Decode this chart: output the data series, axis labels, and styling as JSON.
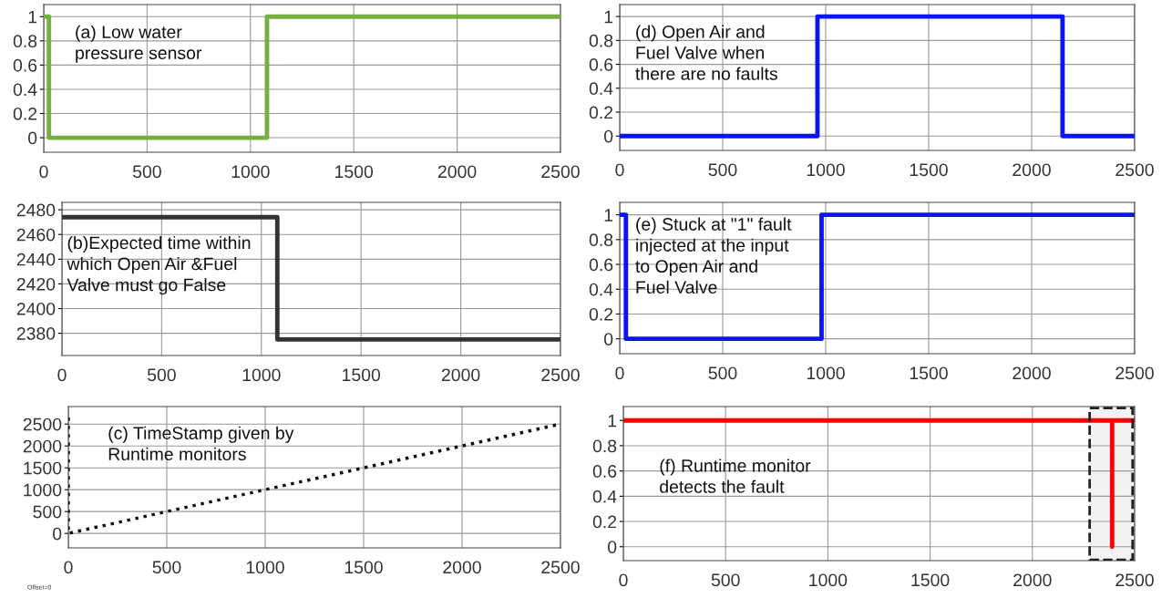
{
  "chart_data": [
    {
      "type": "line",
      "annotations": [
        "(a) Low water\npressure sensor"
      ],
      "xlim": [
        0,
        2500
      ],
      "xticks": [
        0,
        500,
        1000,
        1500,
        2000,
        2500
      ],
      "ylim": [
        -0.12,
        1.1
      ],
      "yticks": [
        0,
        0.2,
        0.4,
        0.6,
        0.8,
        1
      ],
      "grid": true,
      "line_style": "solid",
      "series": [
        {
          "color": "#77b041",
          "x": [
            0,
            25,
            25,
            1080,
            1080,
            2500
          ],
          "values": [
            1,
            1,
            0,
            0,
            1,
            1
          ]
        }
      ]
    },
    {
      "type": "line",
      "annotations": [
        "(b)Expected time within\nwhich Open Air &Fuel\nValve must go False"
      ],
      "xlim": [
        0,
        2500
      ],
      "xticks": [
        0,
        500,
        1000,
        1500,
        2000,
        2500
      ],
      "ylim": [
        2362,
        2486
      ],
      "yticks": [
        2380,
        2400,
        2420,
        2440,
        2460,
        2480
      ],
      "grid": true,
      "line_style": "solid",
      "series": [
        {
          "color": "#333333",
          "x": [
            0,
            1080,
            1080,
            2500
          ],
          "values": [
            2474,
            2474,
            2375,
            2375
          ]
        }
      ]
    },
    {
      "type": "line",
      "annotations": [
        "(c) TimeStamp given by\nRuntime monitors",
        "Offset=0"
      ],
      "xlim": [
        0,
        2500
      ],
      "xticks": [
        0,
        500,
        1000,
        1500,
        2000,
        2500
      ],
      "ylim": [
        -330,
        2900
      ],
      "yticks": [
        0,
        500,
        1000,
        1500,
        2000,
        2500
      ],
      "grid": true,
      "line_style": "dotted",
      "series": [
        {
          "color": "#111111",
          "x": [
            0,
            0,
            2500
          ],
          "values": [
            2650,
            0,
            2500
          ]
        }
      ]
    },
    {
      "type": "line",
      "annotations": [
        "(d) Open Air and\nFuel Valve when\nthere are no faults"
      ],
      "xlim": [
        0,
        2500
      ],
      "xticks": [
        0,
        500,
        1000,
        1500,
        2000,
        2500
      ],
      "ylim": [
        -0.12,
        1.1
      ],
      "yticks": [
        0,
        0.2,
        0.4,
        0.6,
        0.8,
        1
      ],
      "grid": true,
      "line_style": "solid",
      "series": [
        {
          "color": "#0a14f5",
          "x": [
            0,
            960,
            960,
            2150,
            2150,
            2500
          ],
          "values": [
            0,
            0,
            1,
            1,
            0,
            0
          ]
        }
      ]
    },
    {
      "type": "line",
      "annotations": [
        "(e) Stuck at \"1\" fault\ninjected at the input\nto Open Air and\nFuel Valve"
      ],
      "xlim": [
        0,
        2500
      ],
      "xticks": [
        0,
        500,
        1000,
        1500,
        2000,
        2500
      ],
      "ylim": [
        -0.12,
        1.1
      ],
      "yticks": [
        0,
        0.2,
        0.4,
        0.6,
        0.8,
        1
      ],
      "grid": true,
      "line_style": "solid",
      "series": [
        {
          "color": "#0a14f5",
          "x": [
            0,
            30,
            30,
            980,
            980,
            2500
          ],
          "values": [
            1,
            1,
            0,
            0,
            1,
            1
          ]
        }
      ]
    },
    {
      "type": "line",
      "annotations": [
        "(f) Runtime monitor\ndetects the fault"
      ],
      "xlim": [
        0,
        2500
      ],
      "xticks": [
        0,
        500,
        1000,
        1500,
        2000,
        2500
      ],
      "ylim": [
        -0.11,
        1.11
      ],
      "yticks": [
        0,
        0.2,
        0.4,
        0.6,
        0.8,
        1
      ],
      "grid": true,
      "line_style": "solid",
      "bands": [
        {
          "axis": "x",
          "from": 2280,
          "to": 2490,
          "color": "#222222"
        }
      ],
      "series": [
        {
          "color": "#ff0000",
          "x": [
            0,
            2390,
            2390,
            2390,
            2500
          ],
          "values": [
            1,
            1,
            0,
            1,
            1
          ]
        }
      ]
    }
  ]
}
